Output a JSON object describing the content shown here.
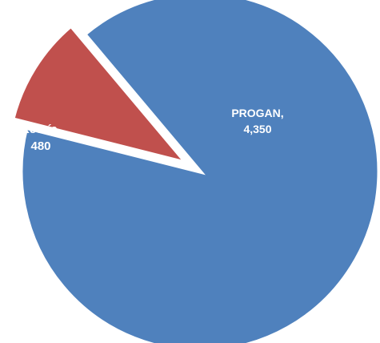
{
  "chart_data": {
    "type": "pie",
    "categories": [
      "PROGAN",
      "Recría"
    ],
    "values": [
      4350,
      480
    ],
    "colors": [
      "#4F81BD",
      "#C0504D"
    ],
    "exploded": [
      "Recría"
    ],
    "data_labels": [
      {
        "category": "PROGAN",
        "line1": "PROGAN,",
        "line2": "4,350"
      },
      {
        "category": "Recría",
        "line1": "Recría,",
        "line2": "480"
      }
    ],
    "title": "",
    "legend": "none"
  }
}
